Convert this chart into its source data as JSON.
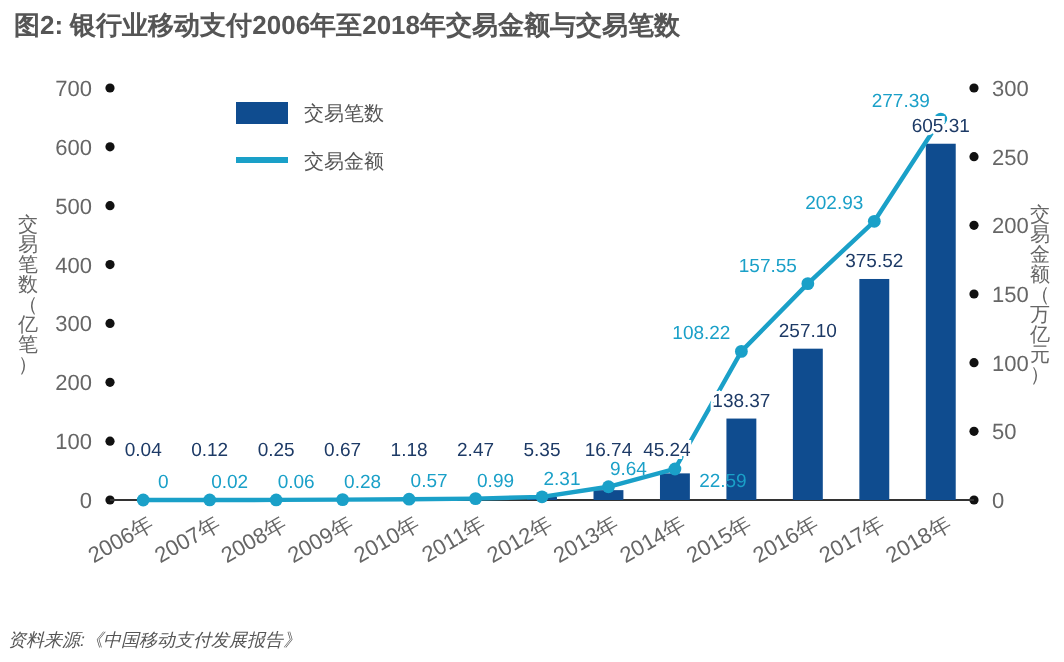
{
  "chart_data": {
    "type": "bar",
    "title": "图2: 银行业移动支付2006年至2018年交易金额与交易笔数",
    "ylabel": "交易笔数（亿笔）",
    "y2label": "交易金额（万亿元）",
    "categories": [
      "2006年",
      "2007年",
      "2008年",
      "2009年",
      "2010年",
      "2011年",
      "2012年",
      "2013年",
      "2014年",
      "2015年",
      "2016年",
      "2017年",
      "2018年"
    ],
    "series": [
      {
        "name": "交易笔数",
        "color": "#0f4c8f",
        "values": [
          0.04,
          0.12,
          0.25,
          0.67,
          1.18,
          2.47,
          5.35,
          16.74,
          45.24,
          138.37,
          257.1,
          375.52,
          605.31
        ],
        "value_labels": [
          "0.04",
          "0.12",
          "0.25",
          "0.67",
          "1.18",
          "2.47",
          "5.35",
          "16.74",
          "45.24",
          "138.37",
          "257.10",
          "375.52",
          "605.31"
        ]
      },
      {
        "name": "交易金额",
        "type": "line",
        "axis": "y2",
        "color": "#1aa0c8",
        "marker": "circle",
        "values": [
          0,
          0.02,
          0.06,
          0.28,
          0.57,
          0.99,
          2.31,
          9.64,
          22.59,
          108.22,
          157.55,
          202.93,
          277.39
        ],
        "value_labels": [
          "0",
          "0.02",
          "0.06",
          "0.28",
          "0.57",
          "0.99",
          "2.31",
          "9.64",
          "22.59",
          "108.22",
          "157.55",
          "202.93",
          "277.39"
        ]
      }
    ],
    "ylim": [
      0,
      700
    ],
    "yticks": [
      0,
      100,
      200,
      300,
      400,
      500,
      600,
      700
    ],
    "y2lim": [
      0,
      300
    ],
    "y2ticks": [
      0,
      50,
      100,
      150,
      200,
      250,
      300
    ],
    "legend": "top left",
    "annotations": [
      "资料来源:《中国移动支付发展报告》"
    ]
  }
}
